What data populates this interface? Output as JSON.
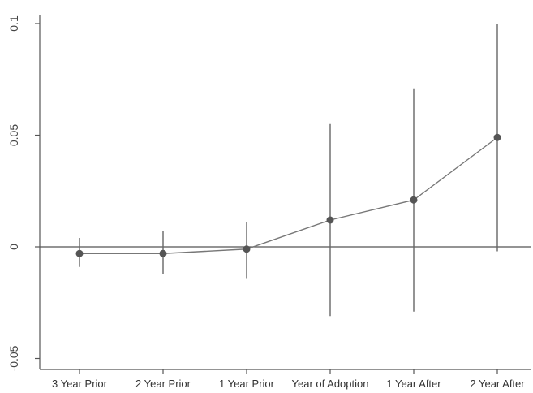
{
  "chart_data": {
    "type": "scatter",
    "title": "",
    "xlabel": "",
    "ylabel": "",
    "categories": [
      "3 Year Prior",
      "2 Year Prior",
      "1 Year Prior",
      "Year of Adoption",
      "1 Year After",
      "2 Year After"
    ],
    "x_tick_labels": [
      "3 Year Prior",
      "2 Year Prior",
      "1 Year Prior",
      "Year of Adoption",
      "1 Year After",
      "2 Year After"
    ],
    "series": [
      {
        "values": [
          -0.003,
          -0.003,
          -0.001,
          0.012,
          0.021,
          0.049
        ],
        "ci_lower": [
          -0.009,
          -0.012,
          -0.014,
          -0.031,
          -0.029,
          -0.002
        ],
        "ci_upper": [
          0.004,
          0.007,
          0.011,
          0.055,
          0.071,
          0.1
        ]
      }
    ],
    "y_ticks": [
      -0.05,
      0,
      0.05,
      0.1
    ],
    "y_tick_labels": [
      "-0.05",
      "0",
      "0.05",
      "0.1"
    ],
    "ylim": [
      -0.058,
      0.102
    ],
    "reference_line_y": 0,
    "grid": false,
    "legend": "none",
    "colors": {
      "points": "#555555",
      "line": "#777777",
      "intervals": "#666666",
      "axis": "#555555"
    }
  }
}
